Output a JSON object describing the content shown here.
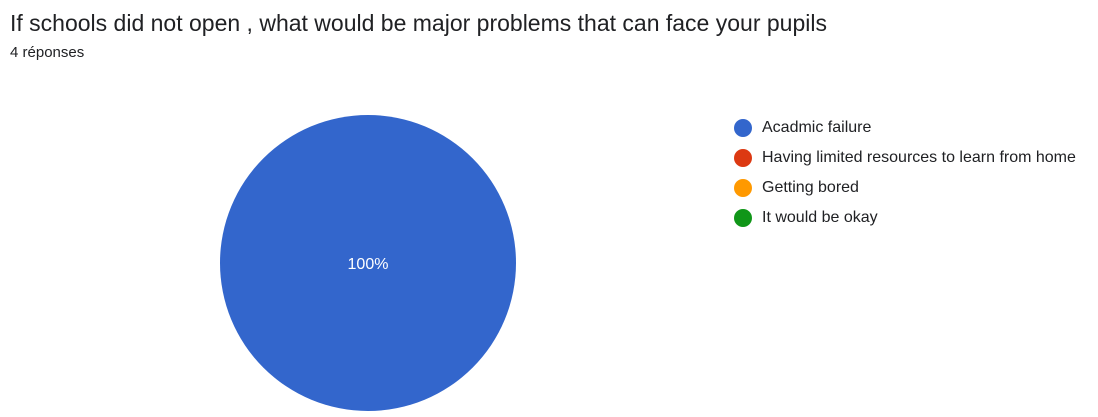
{
  "question": {
    "title": "If schools did not open , what would be major problems that can face your pupils",
    "responses": "4 réponses"
  },
  "chart_data": {
    "type": "pie",
    "categories": [
      "Acadmic failure",
      "Having limited resources to learn from home",
      "Getting bored",
      "It would be okay"
    ],
    "values": [
      100,
      0,
      0,
      0
    ],
    "colors": [
      "#3366cc",
      "#dc3912",
      "#ff9900",
      "#109618"
    ],
    "data_labels": [
      "100%"
    ],
    "legend_position": "right"
  }
}
